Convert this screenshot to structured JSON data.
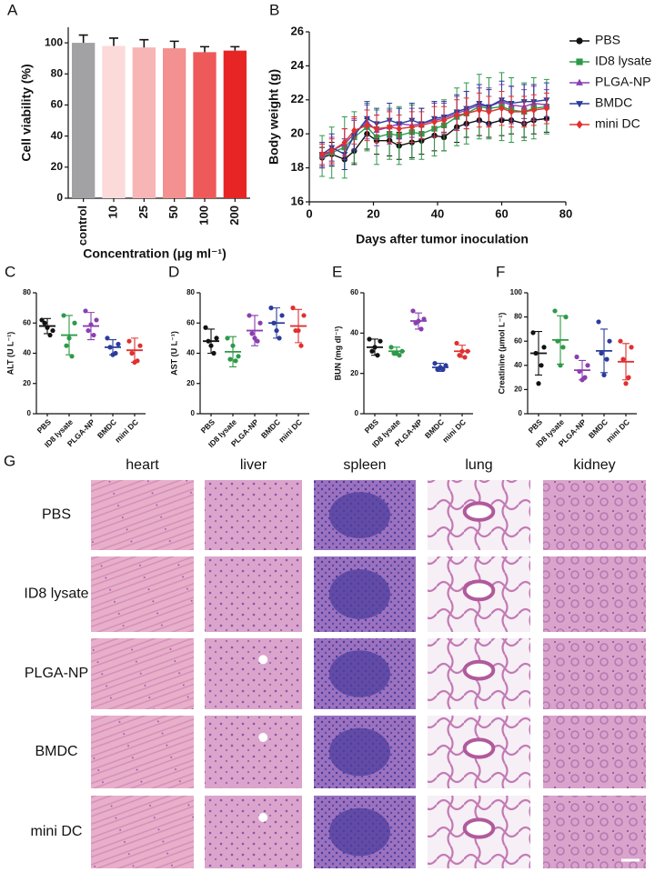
{
  "chart_data": [
    {
      "type": "bar",
      "panel_label": "A",
      "ylabel": "Cell viability (%)",
      "xlabel": "Concentration (μg ml⁻¹)",
      "categories": [
        "control",
        "10",
        "25",
        "50",
        "100",
        "200"
      ],
      "values": [
        100,
        98,
        97,
        96.5,
        94,
        95
      ],
      "errors": [
        5,
        5,
        5,
        4.5,
        3.5,
        2.5
      ],
      "colors": [
        "#a2a2a5",
        "#fcdada",
        "#f7b5b5",
        "#f39090",
        "#ee5a5a",
        "#e82525"
      ],
      "ylim": [
        0,
        110
      ],
      "yticks": [
        0,
        20,
        40,
        60,
        80,
        100
      ]
    },
    {
      "type": "line",
      "panel_label": "B",
      "ylabel": "Body weight (g)",
      "xlabel": "Days after tumor inoculation",
      "x": [
        4,
        7,
        11,
        14,
        18,
        21,
        25,
        28,
        32,
        35,
        39,
        42,
        46,
        49,
        53,
        56,
        60,
        63,
        67,
        70,
        74
      ],
      "xlim": [
        0,
        80
      ],
      "xticks": [
        0,
        20,
        40,
        60,
        80
      ],
      "ylim": [
        16,
        26
      ],
      "yticks": [
        16,
        18,
        20,
        22,
        24,
        26
      ],
      "legend": "right",
      "series": [
        {
          "name": "PBS",
          "color": "#111111",
          "marker": "circle",
          "values": [
            18.6,
            18.8,
            18.5,
            19.0,
            20.0,
            19.6,
            19.6,
            19.3,
            19.5,
            19.6,
            19.9,
            19.8,
            20.4,
            20.6,
            20.8,
            20.6,
            20.8,
            20.8,
            20.6,
            20.8,
            20.9
          ],
          "errors": [
            0.6,
            0.7,
            0.6,
            0.8,
            0.9,
            0.8,
            0.9,
            0.8,
            0.9,
            0.8,
            0.9,
            0.8,
            0.9,
            0.8,
            0.9,
            0.8,
            0.9,
            0.8,
            0.8,
            0.8,
            0.8
          ]
        },
        {
          "name": "ID8 lysate",
          "color": "#2e9a48",
          "marker": "square",
          "values": [
            18.7,
            18.9,
            19.2,
            19.8,
            20.4,
            19.8,
            20.0,
            19.9,
            20.1,
            20.0,
            20.3,
            20.5,
            21.0,
            21.2,
            21.6,
            21.5,
            21.6,
            21.4,
            21.3,
            21.5,
            21.6
          ],
          "errors": [
            1.2,
            1.5,
            1.8,
            1.5,
            1.4,
            1.6,
            1.5,
            1.7,
            1.6,
            1.5,
            1.6,
            1.5,
            1.7,
            1.8,
            1.9,
            1.8,
            2.0,
            1.9,
            1.7,
            1.8,
            1.6
          ]
        },
        {
          "name": "PLGA-NP",
          "color": "#8a3fb0",
          "marker": "triangle",
          "values": [
            18.7,
            19.0,
            19.4,
            20.0,
            20.7,
            20.2,
            20.4,
            20.6,
            20.5,
            20.6,
            20.8,
            20.9,
            21.2,
            21.4,
            21.7,
            21.6,
            21.9,
            21.7,
            21.6,
            21.8,
            21.7
          ],
          "errors": [
            0.7,
            0.8,
            0.9,
            0.9,
            1.0,
            0.9,
            1.0,
            0.9,
            1.0,
            0.9,
            1.0,
            0.9,
            1.0,
            1.1,
            1.0,
            1.1,
            1.0,
            1.1,
            1.0,
            1.0,
            0.9
          ]
        },
        {
          "name": "BMDC",
          "color": "#2a3c9c",
          "marker": "triangle-down",
          "values": [
            18.8,
            19.2,
            18.8,
            19.9,
            20.9,
            20.6,
            20.8,
            20.6,
            20.8,
            20.6,
            20.9,
            21.0,
            21.3,
            21.5,
            21.8,
            21.6,
            22.0,
            21.8,
            21.9,
            21.9,
            22.0
          ],
          "errors": [
            0.7,
            0.8,
            0.9,
            0.9,
            1.0,
            0.9,
            1.0,
            0.9,
            1.0,
            0.9,
            1.0,
            0.9,
            1.0,
            1.0,
            1.1,
            1.0,
            1.1,
            1.0,
            1.0,
            1.0,
            1.0
          ]
        },
        {
          "name": "mini DC",
          "color": "#e03030",
          "marker": "diamond",
          "values": [
            18.8,
            19.0,
            19.5,
            20.2,
            20.5,
            20.3,
            20.4,
            20.3,
            20.4,
            20.5,
            20.7,
            20.8,
            21.1,
            21.2,
            21.4,
            21.3,
            21.5,
            21.3,
            21.3,
            21.4,
            21.5
          ],
          "errors": [
            0.6,
            0.7,
            0.8,
            0.8,
            0.9,
            0.8,
            0.9,
            0.8,
            0.9,
            0.8,
            0.9,
            0.8,
            0.9,
            0.9,
            1.0,
            0.9,
            1.0,
            0.9,
            0.9,
            0.9,
            0.9
          ]
        }
      ]
    },
    {
      "type": "dot",
      "panel_label": "C",
      "ylabel": "ALT (U L⁻¹)",
      "categories": [
        "PBS",
        "ID8 lysate",
        "PLGA-NP",
        "BMDC",
        "mini DC"
      ],
      "colors": [
        "#111111",
        "#2e9a48",
        "#8a3fb0",
        "#2a3c9c",
        "#e03030"
      ],
      "points": [
        [
          62,
          55,
          60,
          52,
          57
        ],
        [
          65,
          60,
          45,
          38,
          50
        ],
        [
          68,
          62,
          55,
          52,
          59
        ],
        [
          50,
          46,
          44,
          40,
          39
        ],
        [
          48,
          45,
          40,
          35,
          34
        ]
      ],
      "means": [
        58,
        52,
        58,
        44,
        42
      ],
      "sds": [
        5,
        13,
        9,
        5,
        8
      ],
      "ylim": [
        0,
        80
      ],
      "yticks": [
        0,
        20,
        40,
        60,
        80
      ]
    },
    {
      "type": "dot",
      "panel_label": "D",
      "ylabel": "AST (U L⁻¹)",
      "categories": [
        "PBS",
        "ID8 lysate",
        "PLGA-NP",
        "BMDC",
        "mini DC"
      ],
      "colors": [
        "#111111",
        "#2e9a48",
        "#8a3fb0",
        "#2a3c9c",
        "#e03030"
      ],
      "points": [
        [
          57,
          50,
          48,
          40,
          45
        ],
        [
          50,
          38,
          36,
          35,
          45
        ],
        [
          65,
          60,
          53,
          48,
          50
        ],
        [
          70,
          65,
          60,
          50,
          55
        ],
        [
          70,
          65,
          55,
          45,
          55
        ]
      ],
      "means": [
        48,
        41,
        55,
        60,
        58
      ],
      "sds": [
        8,
        10,
        10,
        10,
        11
      ],
      "ylim": [
        0,
        80
      ],
      "yticks": [
        0,
        20,
        40,
        60,
        80
      ]
    },
    {
      "type": "dot",
      "panel_label": "E",
      "ylabel": "BUN (mg dl⁻¹)",
      "categories": [
        "PBS",
        "ID8 lysate",
        "PLGA-NP",
        "BMDC",
        "mini DC"
      ],
      "colors": [
        "#111111",
        "#2e9a48",
        "#8a3fb0",
        "#2a3c9c",
        "#e03030"
      ],
      "points": [
        [
          37,
          36,
          31,
          29,
          33
        ],
        [
          33,
          31,
          30,
          29,
          30
        ],
        [
          51,
          47,
          45,
          42,
          46
        ],
        [
          25,
          24,
          22,
          22,
          23
        ],
        [
          35,
          31,
          29,
          28,
          31
        ]
      ],
      "means": [
        33,
        31,
        46,
        23,
        31
      ],
      "sds": [
        4,
        2,
        4,
        2,
        3
      ],
      "ylim": [
        0,
        60
      ],
      "yticks": [
        0,
        20,
        40,
        60
      ]
    },
    {
      "type": "dot",
      "panel_label": "F",
      "ylabel": "Creatinine (μmol L⁻¹)",
      "categories": [
        "PBS",
        "ID8 lysate",
        "PLGA-NP",
        "BMDC",
        "mini DC"
      ],
      "colors": [
        "#111111",
        "#2e9a48",
        "#8a3fb0",
        "#2a3c9c",
        "#e03030"
      ],
      "points": [
        [
          67,
          55,
          50,
          40,
          25
        ],
        [
          85,
          80,
          60,
          55,
          40
        ],
        [
          47,
          40,
          35,
          30,
          28
        ],
        [
          76,
          60,
          50,
          45,
          32
        ],
        [
          60,
          55,
          45,
          30,
          25
        ]
      ],
      "means": [
        50,
        61,
        36,
        52,
        43
      ],
      "sds": [
        18,
        20,
        8,
        18,
        15
      ],
      "ylim": [
        0,
        100
      ],
      "yticks": [
        0,
        20,
        40,
        60,
        80,
        100
      ]
    }
  ],
  "histology": {
    "panel_label": "G",
    "columns": [
      "heart",
      "liver",
      "spleen",
      "lung",
      "kidney"
    ],
    "rows": [
      "PBS",
      "ID8 lysate",
      "PLGA-NP",
      "BMDC",
      "mini DC"
    ]
  }
}
